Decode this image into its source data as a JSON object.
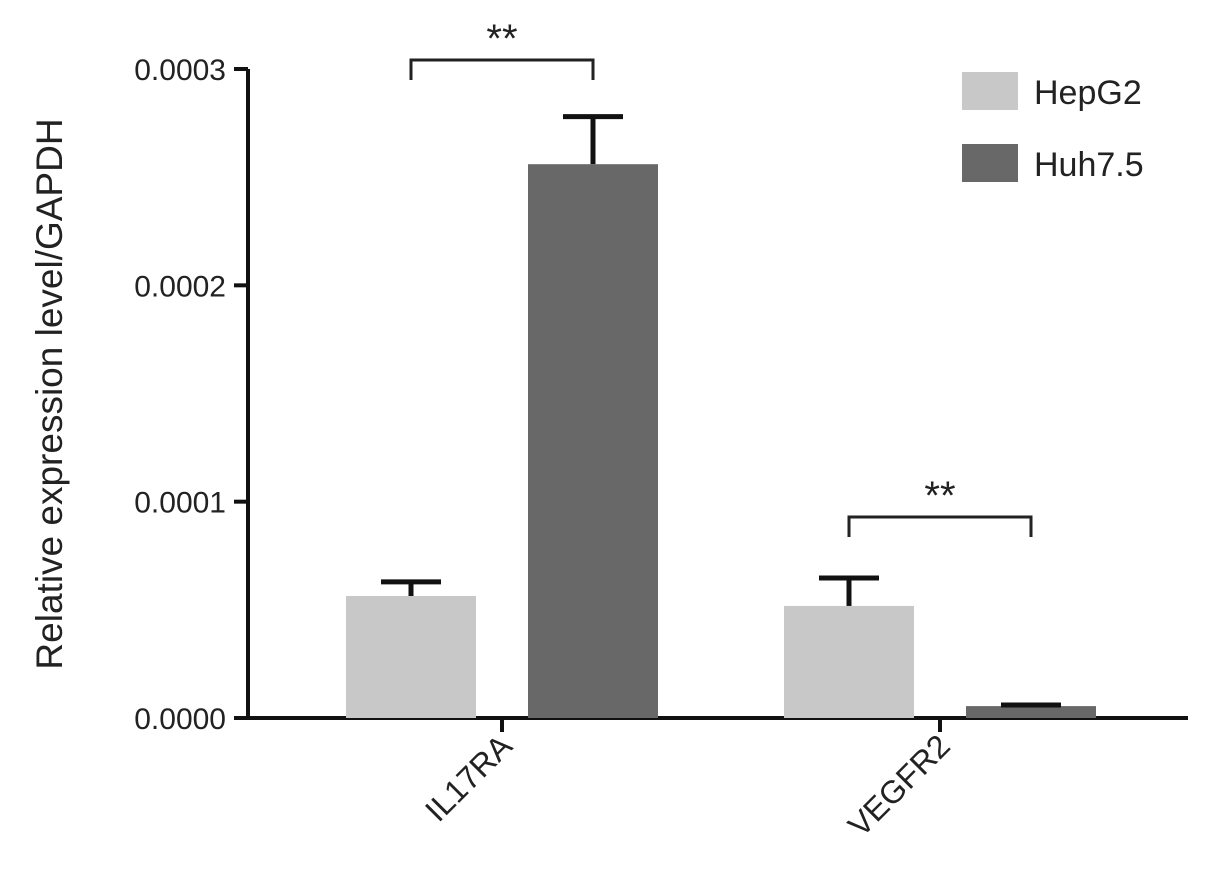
{
  "chart_data": {
    "type": "bar",
    "title": "",
    "xlabel": "",
    "ylabel": "Relative expression level/GAPDH",
    "ylim": [
      0,
      0.0003
    ],
    "yticks": [
      "0.0000",
      "0.0001",
      "0.0002",
      "0.0003"
    ],
    "categories": [
      "IL17RA",
      "VEGFR2"
    ],
    "series": [
      {
        "name": "HepG2",
        "color": "#c8c8c8",
        "values": [
          5.64e-05,
          5.18e-05
        ],
        "error": [
          6.5e-06,
          1.29e-05
        ]
      },
      {
        "name": "Huh7.5",
        "color": "#686868",
        "values": [
          0.000256,
          5.5e-06
        ],
        "error": [
          2.2e-05,
          5e-07
        ]
      }
    ],
    "significance": [
      {
        "category": "IL17RA",
        "label": "**"
      },
      {
        "category": "VEGFR2",
        "label": "**"
      }
    ],
    "legend": "top-right",
    "grid": false
  }
}
